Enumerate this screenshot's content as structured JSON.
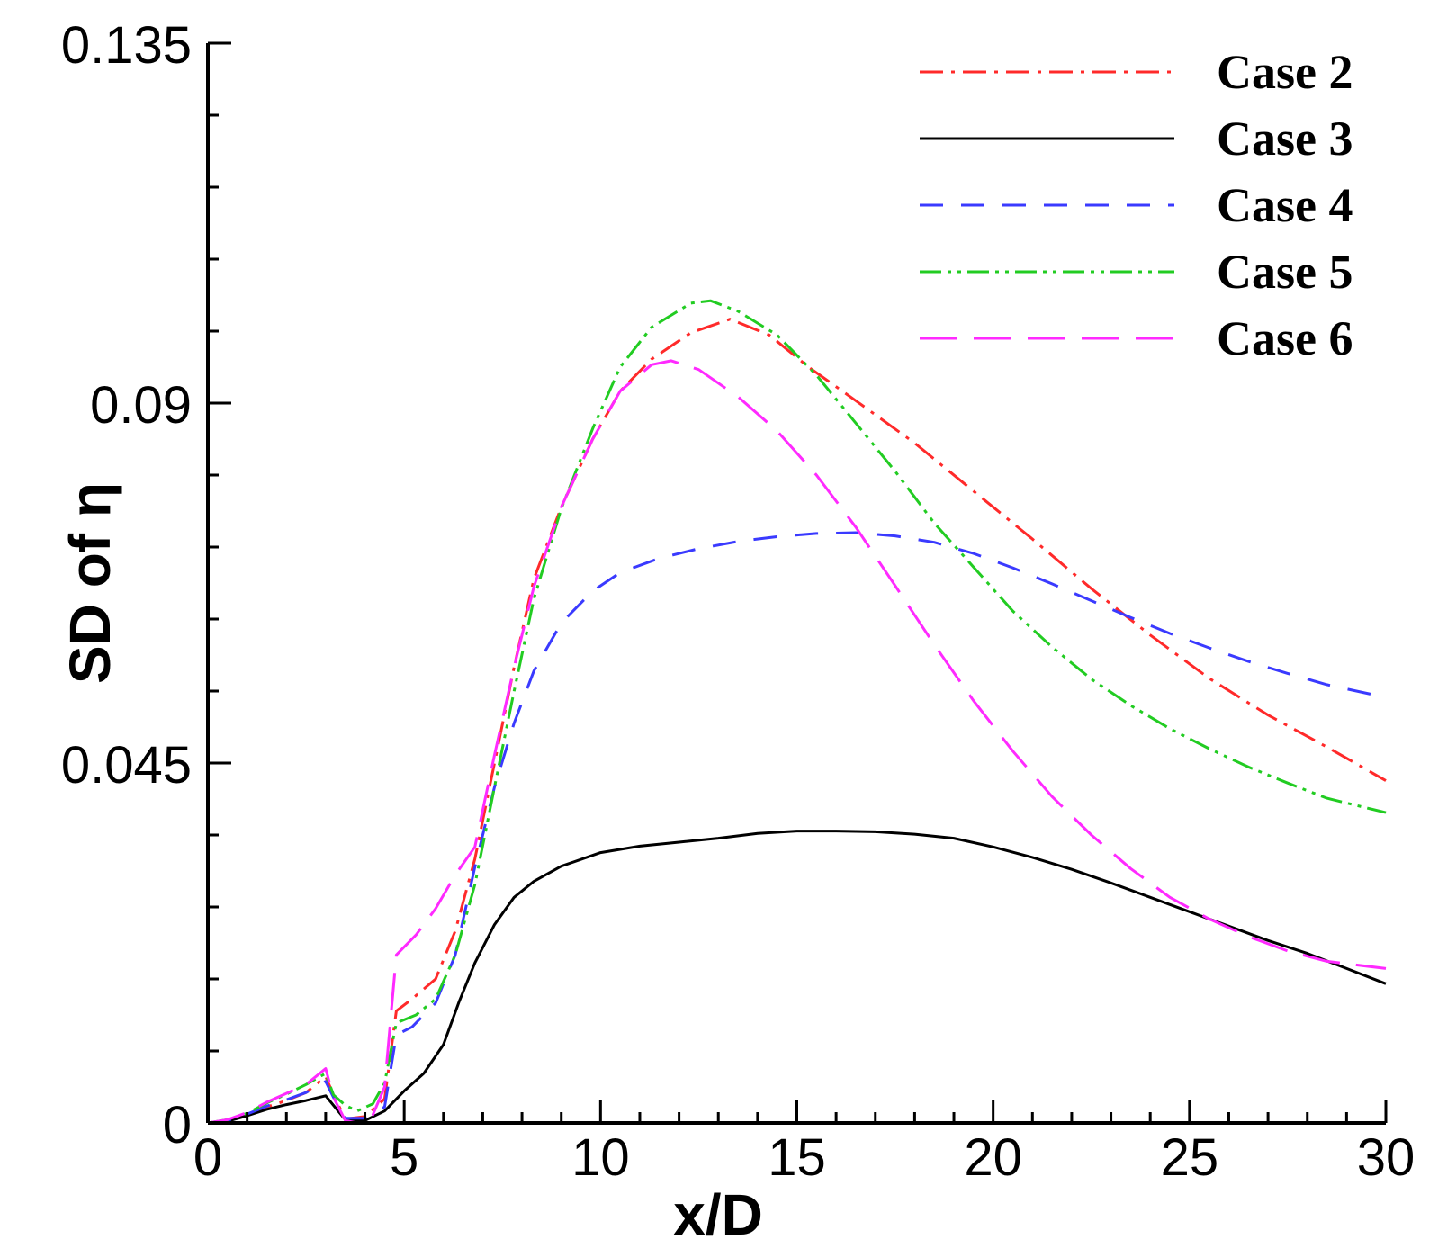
{
  "chart_data": {
    "type": "line",
    "title": "",
    "xlabel": "x/D",
    "ylabel": "SD of η",
    "xlim": [
      0,
      30
    ],
    "ylim": [
      0,
      0.135
    ],
    "xticks": [
      0,
      5,
      10,
      15,
      20,
      25,
      30
    ],
    "xtick_labels": [
      "0",
      "5",
      "10",
      "15",
      "20",
      "25",
      "30"
    ],
    "yticks": [
      0,
      0.045,
      0.09,
      0.135
    ],
    "ytick_labels": [
      "0",
      "0.045",
      "0.09",
      "0.135"
    ],
    "x_minor_step": 1,
    "y_minor_step": 0.009,
    "grid": false,
    "legend_position": "top-right",
    "series": [
      {
        "name": "Case 2",
        "color": "#ff2a2a",
        "dash": "dashdot",
        "points": [
          [
            0,
            0
          ],
          [
            0.5,
            0.0003
          ],
          [
            1,
            0.001
          ],
          [
            1.5,
            0.002
          ],
          [
            2,
            0.0028
          ],
          [
            2.5,
            0.0038
          ],
          [
            3,
            0.0058
          ],
          [
            3.2,
            0.0035
          ],
          [
            3.5,
            0.0005
          ],
          [
            4,
            0.0008
          ],
          [
            4.5,
            0.003
          ],
          [
            4.8,
            0.014
          ],
          [
            5.2,
            0.0155
          ],
          [
            5.8,
            0.018
          ],
          [
            6.3,
            0.024
          ],
          [
            6.8,
            0.033
          ],
          [
            7.3,
            0.045
          ],
          [
            7.8,
            0.057
          ],
          [
            8.3,
            0.068
          ],
          [
            9,
            0.077
          ],
          [
            9.8,
            0.0855
          ],
          [
            10.5,
            0.0915
          ],
          [
            11.3,
            0.0955
          ],
          [
            12.3,
            0.0988
          ],
          [
            13.3,
            0.1005
          ],
          [
            14.3,
            0.0985
          ],
          [
            15.3,
            0.0945
          ],
          [
            16.5,
            0.0903
          ],
          [
            18,
            0.085
          ],
          [
            19.5,
            0.079
          ],
          [
            21,
            0.073
          ],
          [
            22.5,
            0.0668
          ],
          [
            24,
            0.061
          ],
          [
            25.5,
            0.0556
          ],
          [
            27,
            0.051
          ],
          [
            28.5,
            0.047
          ],
          [
            30,
            0.0428
          ]
        ]
      },
      {
        "name": "Case 3",
        "color": "#000000",
        "dash": "solid",
        "points": [
          [
            0,
            0
          ],
          [
            0.5,
            0.0002
          ],
          [
            1,
            0.0009
          ],
          [
            1.5,
            0.0017
          ],
          [
            2,
            0.0023
          ],
          [
            2.5,
            0.0028
          ],
          [
            3,
            0.0034
          ],
          [
            3.2,
            0.0022
          ],
          [
            3.5,
            0.0004
          ],
          [
            4,
            0.0003
          ],
          [
            4.5,
            0.0015
          ],
          [
            5,
            0.004
          ],
          [
            5.5,
            0.0062
          ],
          [
            6,
            0.0098
          ],
          [
            6.4,
            0.0152
          ],
          [
            6.8,
            0.02
          ],
          [
            7.3,
            0.0248
          ],
          [
            7.8,
            0.0282
          ],
          [
            8.3,
            0.0302
          ],
          [
            9,
            0.0321
          ],
          [
            10,
            0.0338
          ],
          [
            11,
            0.0346
          ],
          [
            12,
            0.0351
          ],
          [
            13,
            0.0356
          ],
          [
            14,
            0.0362
          ],
          [
            15,
            0.0365
          ],
          [
            16,
            0.0365
          ],
          [
            17,
            0.0364
          ],
          [
            18,
            0.0361
          ],
          [
            19,
            0.0356
          ],
          [
            20,
            0.0345
          ],
          [
            21,
            0.0332
          ],
          [
            22,
            0.0317
          ],
          [
            23,
            0.03
          ],
          [
            24,
            0.0282
          ],
          [
            25,
            0.0264
          ],
          [
            26,
            0.0246
          ],
          [
            27,
            0.0228
          ],
          [
            28,
            0.0212
          ],
          [
            29,
            0.0193
          ],
          [
            30,
            0.0174
          ]
        ]
      },
      {
        "name": "Case 4",
        "color": "#3a3aff",
        "dash": "dashed",
        "points": [
          [
            0,
            0
          ],
          [
            0.5,
            0.0003
          ],
          [
            1,
            0.0011
          ],
          [
            1.5,
            0.0021
          ],
          [
            2,
            0.0029
          ],
          [
            2.5,
            0.0038
          ],
          [
            3,
            0.0052
          ],
          [
            3.2,
            0.0032
          ],
          [
            3.5,
            0.0006
          ],
          [
            4,
            0.0006
          ],
          [
            4.5,
            0.002
          ],
          [
            4.8,
            0.011
          ],
          [
            5.2,
            0.012
          ],
          [
            5.8,
            0.015
          ],
          [
            6.3,
            0.021
          ],
          [
            6.8,
            0.032
          ],
          [
            7.3,
            0.042
          ],
          [
            7.8,
            0.05
          ],
          [
            8.3,
            0.0565
          ],
          [
            9,
            0.0625
          ],
          [
            9.8,
            0.0665
          ],
          [
            10.5,
            0.0688
          ],
          [
            11.5,
            0.0706
          ],
          [
            12.5,
            0.0718
          ],
          [
            13.5,
            0.0727
          ],
          [
            14.5,
            0.0733
          ],
          [
            15.5,
            0.0737
          ],
          [
            16.5,
            0.0738
          ],
          [
            17.5,
            0.0734
          ],
          [
            18.5,
            0.0726
          ],
          [
            19.5,
            0.0712
          ],
          [
            20.5,
            0.0694
          ],
          [
            21.5,
            0.0674
          ],
          [
            22.5,
            0.0653
          ],
          [
            23.5,
            0.0632
          ],
          [
            24.5,
            0.0612
          ],
          [
            25.5,
            0.0594
          ],
          [
            26.5,
            0.0577
          ],
          [
            27.5,
            0.0562
          ],
          [
            28.5,
            0.0548
          ],
          [
            30,
            0.0532
          ]
        ]
      },
      {
        "name": "Case 5",
        "color": "#22cc22",
        "dash": "dashdotdot",
        "points": [
          [
            0,
            0
          ],
          [
            0.5,
            0.0004
          ],
          [
            1,
            0.0012
          ],
          [
            1.5,
            0.0025
          ],
          [
            2,
            0.0036
          ],
          [
            2.5,
            0.0048
          ],
          [
            3,
            0.0062
          ],
          [
            3.2,
            0.0035
          ],
          [
            3.5,
            0.0022
          ],
          [
            3.8,
            0.0015
          ],
          [
            4.2,
            0.0024
          ],
          [
            4.5,
            0.005
          ],
          [
            4.8,
            0.0125
          ],
          [
            5.3,
            0.0135
          ],
          [
            5.8,
            0.0155
          ],
          [
            6.3,
            0.021
          ],
          [
            6.8,
            0.0298
          ],
          [
            7.3,
            0.042
          ],
          [
            7.8,
            0.054
          ],
          [
            8.3,
            0.0655
          ],
          [
            9,
            0.0768
          ],
          [
            9.8,
            0.0868
          ],
          [
            10.5,
            0.0945
          ],
          [
            11.3,
            0.0995
          ],
          [
            12.3,
            0.1025
          ],
          [
            12.8,
            0.1028
          ],
          [
            13.5,
            0.1015
          ],
          [
            14.5,
            0.0985
          ],
          [
            15.5,
            0.0935
          ],
          [
            16.5,
            0.0875
          ],
          [
            17.5,
            0.0815
          ],
          [
            18.5,
            0.075
          ],
          [
            19.5,
            0.0695
          ],
          [
            20.5,
            0.064
          ],
          [
            21.5,
            0.0595
          ],
          [
            22.5,
            0.0555
          ],
          [
            23.5,
            0.0522
          ],
          [
            24.5,
            0.0493
          ],
          [
            25.5,
            0.0468
          ],
          [
            26.5,
            0.0445
          ],
          [
            27.5,
            0.0425
          ],
          [
            28.5,
            0.0406
          ],
          [
            30,
            0.0388
          ]
        ]
      },
      {
        "name": "Case 6",
        "color": "#ff2aff",
        "dash": "longdash",
        "points": [
          [
            0,
            0
          ],
          [
            0.5,
            0.0004
          ],
          [
            1,
            0.0013
          ],
          [
            1.5,
            0.0026
          ],
          [
            2,
            0.0037
          ],
          [
            2.5,
            0.0048
          ],
          [
            3,
            0.0068
          ],
          [
            3.2,
            0.0032
          ],
          [
            3.5,
            0.0003
          ],
          [
            3.8,
            0.0
          ],
          [
            4.2,
            0.001
          ],
          [
            4.5,
            0.0045
          ],
          [
            4.8,
            0.021
          ],
          [
            5.3,
            0.0235
          ],
          [
            5.8,
            0.0268
          ],
          [
            6.3,
            0.031
          ],
          [
            6.8,
            0.0345
          ],
          [
            7.3,
            0.046
          ],
          [
            7.8,
            0.057
          ],
          [
            8.3,
            0.067
          ],
          [
            9,
            0.077
          ],
          [
            9.8,
            0.0855
          ],
          [
            10.5,
            0.0915
          ],
          [
            11.3,
            0.0948
          ],
          [
            11.8,
            0.0953
          ],
          [
            12.5,
            0.0942
          ],
          [
            13.5,
            0.0908
          ],
          [
            14.5,
            0.0865
          ],
          [
            15.5,
            0.081
          ],
          [
            16.5,
            0.0745
          ],
          [
            17.5,
            0.0672
          ],
          [
            18.5,
            0.0598
          ],
          [
            19.5,
            0.0528
          ],
          [
            20.5,
            0.0465
          ],
          [
            21.5,
            0.0408
          ],
          [
            22.5,
            0.036
          ],
          [
            23.5,
            0.0318
          ],
          [
            24.5,
            0.0282
          ],
          [
            25.5,
            0.0255
          ],
          [
            26.5,
            0.0233
          ],
          [
            27.5,
            0.0215
          ],
          [
            28.5,
            0.0202
          ],
          [
            30,
            0.0193
          ]
        ]
      }
    ]
  }
}
